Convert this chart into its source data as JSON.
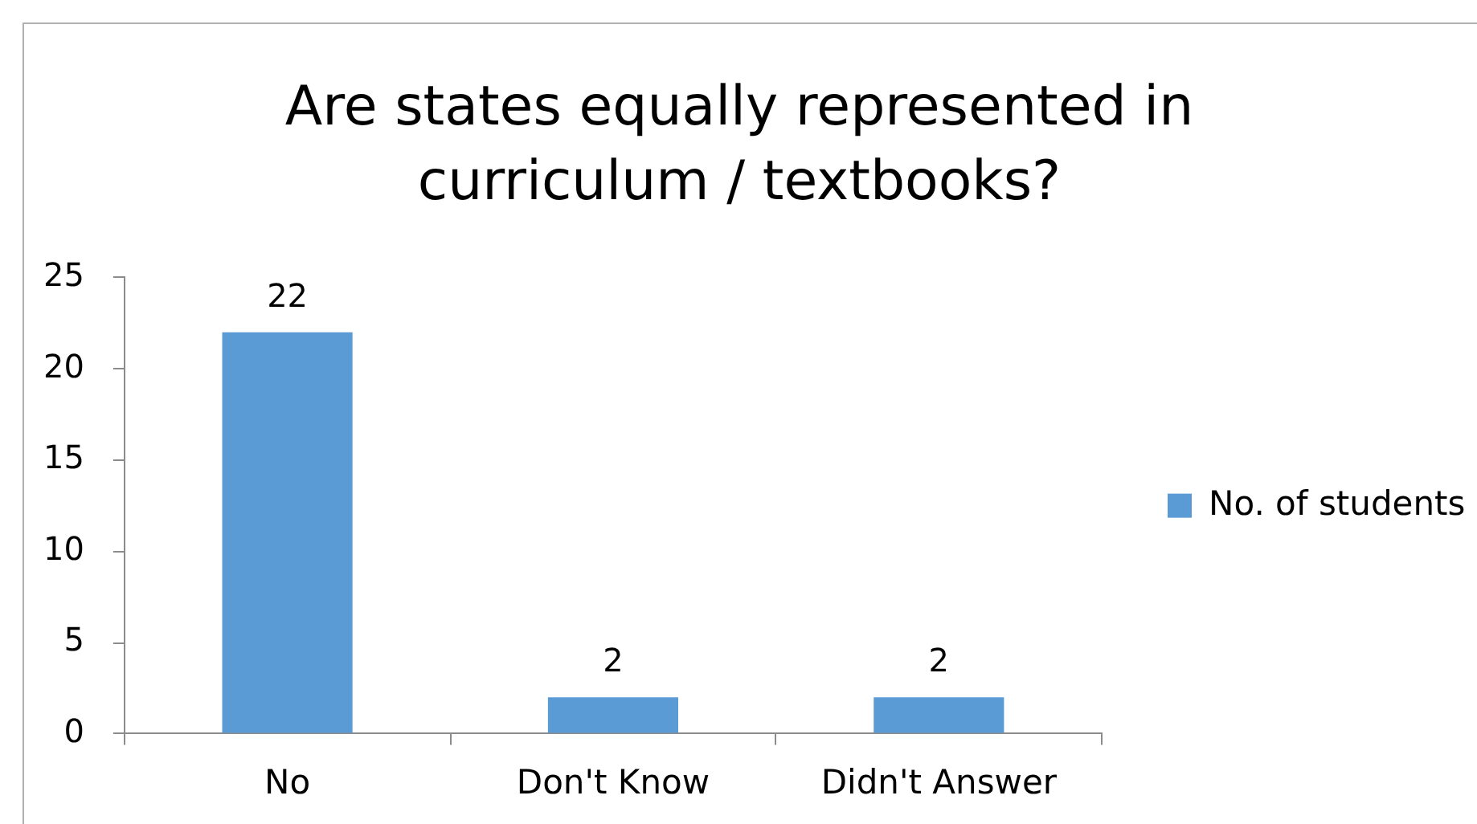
{
  "chart_data": {
    "type": "bar",
    "title": "Are states equally represented in curriculum / textbooks?",
    "categories": [
      "No",
      "Don't Know",
      "Didn't Answer"
    ],
    "series": [
      {
        "name": "No. of students",
        "color": "#5b9bd5",
        "values": [
          22,
          2,
          2
        ]
      }
    ],
    "ylim": [
      0,
      25
    ],
    "yticks": [
      0,
      5,
      10,
      15,
      20,
      25
    ],
    "grid": false,
    "legend": "right",
    "data_labels": true
  }
}
